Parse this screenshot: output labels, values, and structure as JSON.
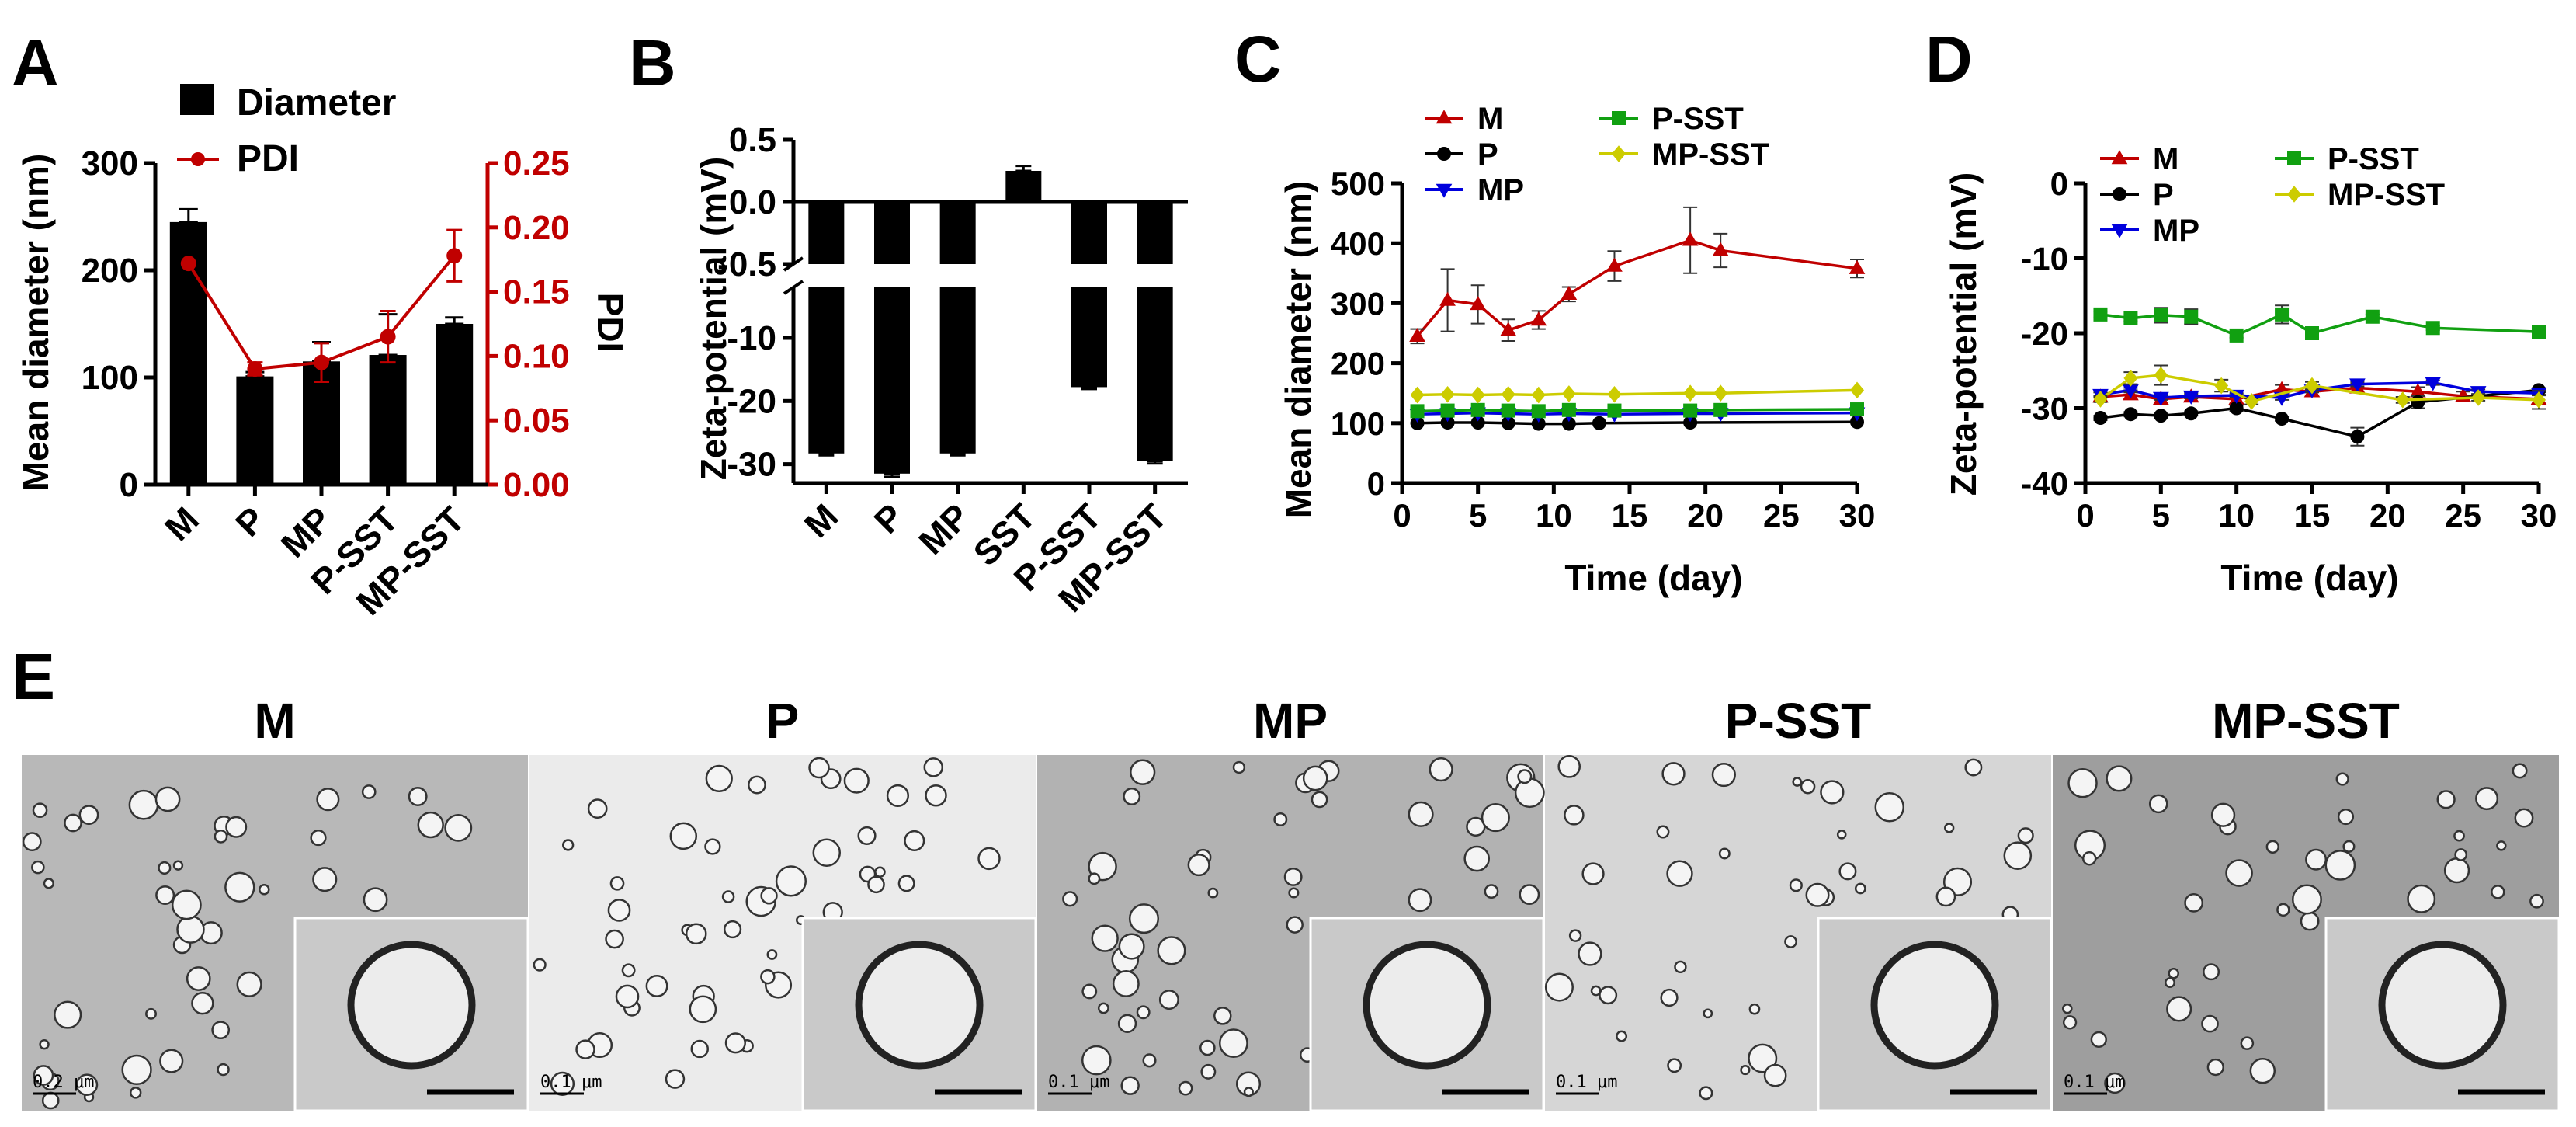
{
  "panels": {
    "A": {
      "letter": "A",
      "type": "bar",
      "categories": [
        "M",
        "P",
        "MP",
        "P-SST",
        "MP-SST"
      ],
      "legend": {
        "bar": "Diameter",
        "line": "PDI"
      },
      "ylabel": "Mean diameter (nm)",
      "ylim": [
        0,
        300
      ],
      "yticks": [
        "0",
        "100",
        "200",
        "300"
      ],
      "y2label": "PDI",
      "y2lim": [
        0,
        0.25
      ],
      "y2ticks": [
        "0.00",
        "0.05",
        "0.10",
        "0.15",
        "0.20",
        "0.25"
      ],
      "bar_values": [
        245,
        101,
        115,
        121,
        150
      ],
      "bar_errors": [
        12,
        4,
        18,
        38,
        6
      ],
      "pdi_values": [
        0.172,
        0.09,
        0.095,
        0.115,
        0.178
      ],
      "pdi_errors": [
        0,
        0.005,
        0.015,
        0.02,
        0.02
      ],
      "colors": {
        "bar": "#000000",
        "pdi": "#c00000"
      }
    },
    "B": {
      "letter": "B",
      "type": "bar",
      "categories": [
        "M",
        "P",
        "MP",
        "SST",
        "P-SST",
        "MP-SST"
      ],
      "ylabel": "Zeta-potential (mV)",
      "yticks_upper": [
        "0.5",
        "0.0",
        "-0.5"
      ],
      "yticks_lower": [
        "-10",
        "-20",
        "-30"
      ],
      "ylim_upper": [
        -0.5,
        0.5
      ],
      "ylim_lower": [
        -33,
        -2
      ],
      "values": [
        -28.3,
        -31.5,
        -28.3,
        0.25,
        -17.8,
        -29.5
      ],
      "errors": [
        0.3,
        0.5,
        0.3,
        0.04,
        0.3,
        0.4
      ]
    },
    "C": {
      "letter": "C",
      "type": "line",
      "xlabel": "Time (day)",
      "ylabel": "Mean diameter (nm)",
      "xlim": [
        0,
        30
      ],
      "ylim": [
        0,
        500
      ],
      "xticks": [
        "0",
        "5",
        "10",
        "15",
        "20",
        "25",
        "30"
      ],
      "yticks": [
        "0",
        "100",
        "200",
        "300",
        "400",
        "500"
      ],
      "series": [
        {
          "name": "M",
          "color": "#c00000",
          "marker": "triangle",
          "x": [
            1,
            3,
            5,
            7,
            9,
            11,
            14,
            19,
            21,
            30
          ],
          "y": [
            245,
            305,
            298,
            255,
            272,
            315,
            362,
            405,
            388,
            358
          ],
          "err": [
            12,
            52,
            32,
            18,
            15,
            12,
            25,
            55,
            28,
            15
          ]
        },
        {
          "name": "P",
          "color": "#000000",
          "marker": "circle",
          "x": [
            1,
            3,
            5,
            7,
            9,
            11,
            13,
            19,
            30
          ],
          "y": [
            100,
            101,
            101,
            100,
            99,
            99,
            100,
            101,
            102
          ],
          "err": [
            0,
            0,
            0,
            0,
            0,
            0,
            0,
            0,
            0
          ]
        },
        {
          "name": "MP",
          "color": "#0000dd",
          "marker": "triangle-down",
          "x": [
            1,
            3,
            5,
            7,
            9,
            11,
            14,
            19,
            21,
            30
          ],
          "y": [
            115,
            116,
            117,
            116,
            115,
            116,
            115,
            116,
            116,
            117
          ],
          "err": [
            0,
            0,
            0,
            0,
            0,
            0,
            0,
            0,
            0,
            0
          ]
        },
        {
          "name": "P-SST",
          "color": "#11a011",
          "marker": "square",
          "x": [
            1,
            3,
            5,
            7,
            9,
            11,
            14,
            19,
            21,
            30
          ],
          "y": [
            120,
            121,
            122,
            121,
            120,
            122,
            121,
            121,
            122,
            123
          ],
          "err": [
            0,
            0,
            0,
            0,
            0,
            0,
            0,
            0,
            0,
            0
          ]
        },
        {
          "name": "MP-SST",
          "color": "#cccc00",
          "marker": "diamond",
          "x": [
            1,
            3,
            5,
            7,
            9,
            11,
            14,
            19,
            21,
            30
          ],
          "y": [
            147,
            148,
            147,
            148,
            147,
            149,
            148,
            150,
            150,
            155
          ],
          "err": [
            0,
            0,
            0,
            0,
            0,
            0,
            0,
            0,
            0,
            0
          ]
        }
      ]
    },
    "D": {
      "letter": "D",
      "type": "line",
      "xlabel": "Time (day)",
      "ylabel": "Zeta-potential (mV)",
      "xlim": [
        0,
        30
      ],
      "ylim": [
        -40,
        0
      ],
      "xticks": [
        "0",
        "5",
        "10",
        "15",
        "20",
        "25",
        "30"
      ],
      "yticks": [
        "-40",
        "-30",
        "-20",
        "-10",
        "0"
      ],
      "series": [
        {
          "name": "M",
          "color": "#c00000",
          "marker": "triangle",
          "x": [
            1,
            3,
            5,
            7,
            10,
            13,
            15,
            18,
            22,
            25,
            30
          ],
          "y": [
            -28.5,
            -28.2,
            -28.8,
            -28.5,
            -28.8,
            -27.5,
            -27.8,
            -27.3,
            -27.8,
            -28.4,
            -28.8
          ],
          "err": [
            0.6,
            0.6,
            0.6,
            0.6,
            0.6,
            0.6,
            0.6,
            0.6,
            0.6,
            0.6,
            0.6
          ]
        },
        {
          "name": "P",
          "color": "#000000",
          "marker": "circle",
          "x": [
            1,
            3,
            5,
            7,
            10,
            13,
            18,
            22,
            30
          ],
          "y": [
            -31.3,
            -30.8,
            -31.0,
            -30.7,
            -30.0,
            -31.4,
            -33.8,
            -29.2,
            -27.6
          ],
          "err": [
            0.3,
            0.3,
            0.3,
            0.3,
            0.4,
            0.3,
            1.2,
            0.8,
            0.3
          ]
        },
        {
          "name": "MP",
          "color": "#0000dd",
          "marker": "triangle-down",
          "x": [
            1,
            3,
            5,
            7,
            10,
            13,
            15,
            18,
            23,
            26,
            30
          ],
          "y": [
            -28.2,
            -27.6,
            -28.6,
            -28.4,
            -28.3,
            -28.6,
            -27.6,
            -26.8,
            -26.6,
            -27.8,
            -28.0
          ],
          "err": [
            0.3,
            0.3,
            0.3,
            0.3,
            0.3,
            0.3,
            0.3,
            0.3,
            0.3,
            0.3,
            0.3
          ]
        },
        {
          "name": "P-SST",
          "color": "#11a011",
          "marker": "square",
          "x": [
            1,
            3,
            5,
            7,
            10,
            13,
            15,
            19,
            23,
            30
          ],
          "y": [
            -17.5,
            -18.0,
            -17.6,
            -17.8,
            -20.3,
            -17.5,
            -20.0,
            -17.8,
            -19.3,
            -19.8
          ],
          "err": [
            0.4,
            0.4,
            1.0,
            1.0,
            0.3,
            1.2,
            0.3,
            0.3,
            0.3,
            0.3
          ]
        },
        {
          "name": "MP-SST",
          "color": "#cccc00",
          "marker": "diamond",
          "x": [
            1,
            3,
            5,
            9,
            11,
            15,
            21,
            26,
            30
          ],
          "y": [
            -28.8,
            -26.0,
            -25.6,
            -27.0,
            -29.1,
            -27.0,
            -28.9,
            -28.6,
            -28.9
          ],
          "err": [
            0.4,
            0.8,
            1.3,
            0.8,
            0.4,
            0.5,
            0.4,
            0.4,
            1.2
          ]
        }
      ]
    },
    "E": {
      "letter": "E",
      "images": [
        {
          "label": "M",
          "scale": "0.2 μm",
          "tone": "#b8b8b8"
        },
        {
          "label": "P",
          "scale": "0.1 μm",
          "tone": "#ebebeb"
        },
        {
          "label": "MP",
          "scale": "0.1 μm",
          "tone": "#b2b2b2"
        },
        {
          "label": "P-SST",
          "scale": "0.1 μm",
          "tone": "#d6d6d6"
        },
        {
          "label": "MP-SST",
          "scale": "0.1 μm",
          "tone": "#9e9e9e"
        }
      ]
    }
  }
}
